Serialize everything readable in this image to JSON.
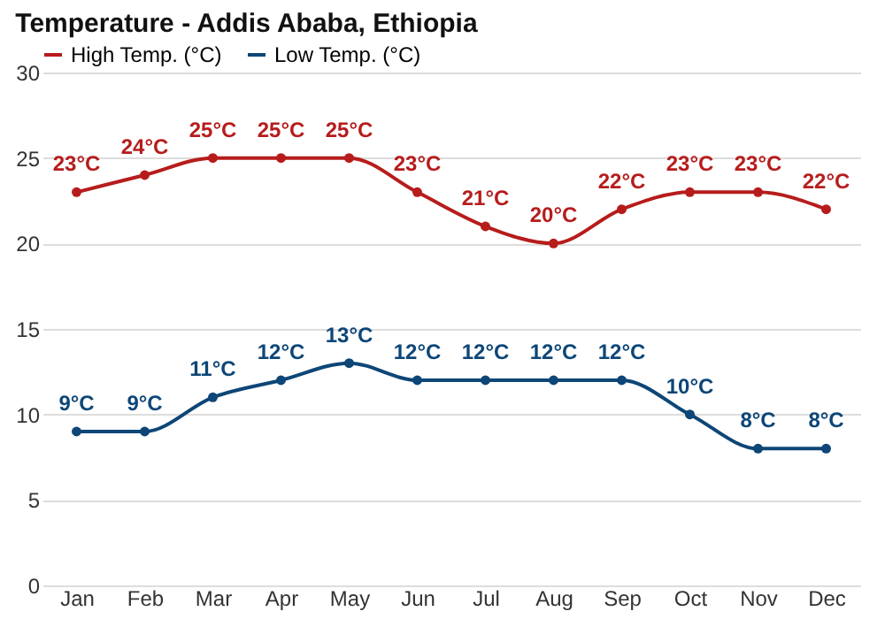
{
  "chart_data": {
    "type": "line",
    "title": "Temperature - Addis Ababa, Ethiopia",
    "categories": [
      "Jan",
      "Feb",
      "Mar",
      "Apr",
      "May",
      "Jun",
      "Jul",
      "Aug",
      "Sep",
      "Oct",
      "Nov",
      "Dec"
    ],
    "series": [
      {
        "name": "High Temp. (°C)",
        "color": "#b71c1c",
        "values": [
          23,
          24,
          25,
          25,
          25,
          23,
          21,
          20,
          22,
          23,
          23,
          22
        ],
        "value_labels": [
          "23°C",
          "24°C",
          "25°C",
          "25°C",
          "25°C",
          "23°C",
          "21°C",
          "20°C",
          "22°C",
          "23°C",
          "23°C",
          "22°C"
        ]
      },
      {
        "name": "Low Temp. (°C)",
        "color": "#0d4677",
        "values": [
          9,
          9,
          11,
          12,
          13,
          12,
          12,
          12,
          12,
          10,
          8,
          8
        ],
        "value_labels": [
          "9°C",
          "9°C",
          "11°C",
          "12°C",
          "13°C",
          "12°C",
          "12°C",
          "12°C",
          "12°C",
          "10°C",
          "8°C",
          "8°C"
        ]
      }
    ],
    "ylim": [
      0,
      30
    ],
    "yticks": [
      0,
      5,
      10,
      15,
      20,
      25,
      30
    ],
    "grid": "y",
    "legend": "top left",
    "marker": "circle",
    "line_style": "solid"
  }
}
